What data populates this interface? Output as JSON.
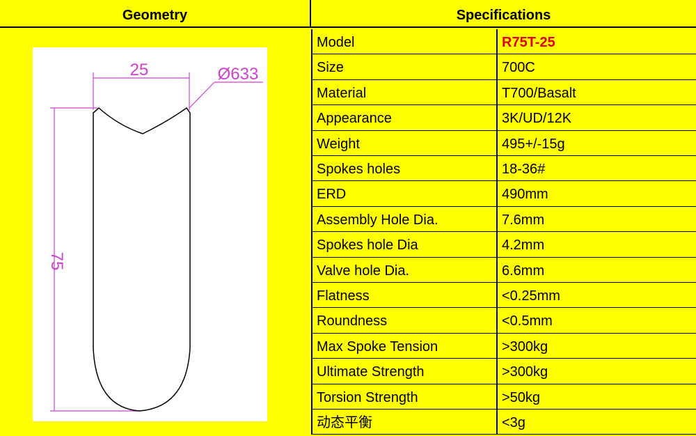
{
  "header": {
    "left": "Geometry",
    "right": "Specifications"
  },
  "geometry": {
    "width_label": "25",
    "diameter_label": "Ø633",
    "depth_label": "75"
  },
  "table": {
    "rows": [
      [
        "Model",
        "R75T-25"
      ],
      [
        "Size",
        "700C"
      ],
      [
        "Material",
        "T700/Basalt"
      ],
      [
        "Appearance",
        "3K/UD/12K"
      ],
      [
        "Weight",
        "495+/-15g"
      ],
      [
        "Spokes holes",
        "18-36#"
      ],
      [
        "ERD",
        "490mm"
      ],
      [
        "Assembly Hole Dia.",
        "7.6mm"
      ],
      [
        "Spokes hole Dia",
        "4.2mm"
      ],
      [
        "Valve hole Dia.",
        "6.6mm"
      ],
      [
        "Flatness",
        "<0.25mm"
      ],
      [
        "Roundness",
        "<0.5mm"
      ],
      [
        "Max Spoke Tension",
        ">300kg"
      ],
      [
        "Ultimate Strength",
        ">300kg"
      ],
      [
        "Torsion Strength",
        ">50kg"
      ],
      [
        "动态平衡",
        "<3g"
      ]
    ]
  }
}
